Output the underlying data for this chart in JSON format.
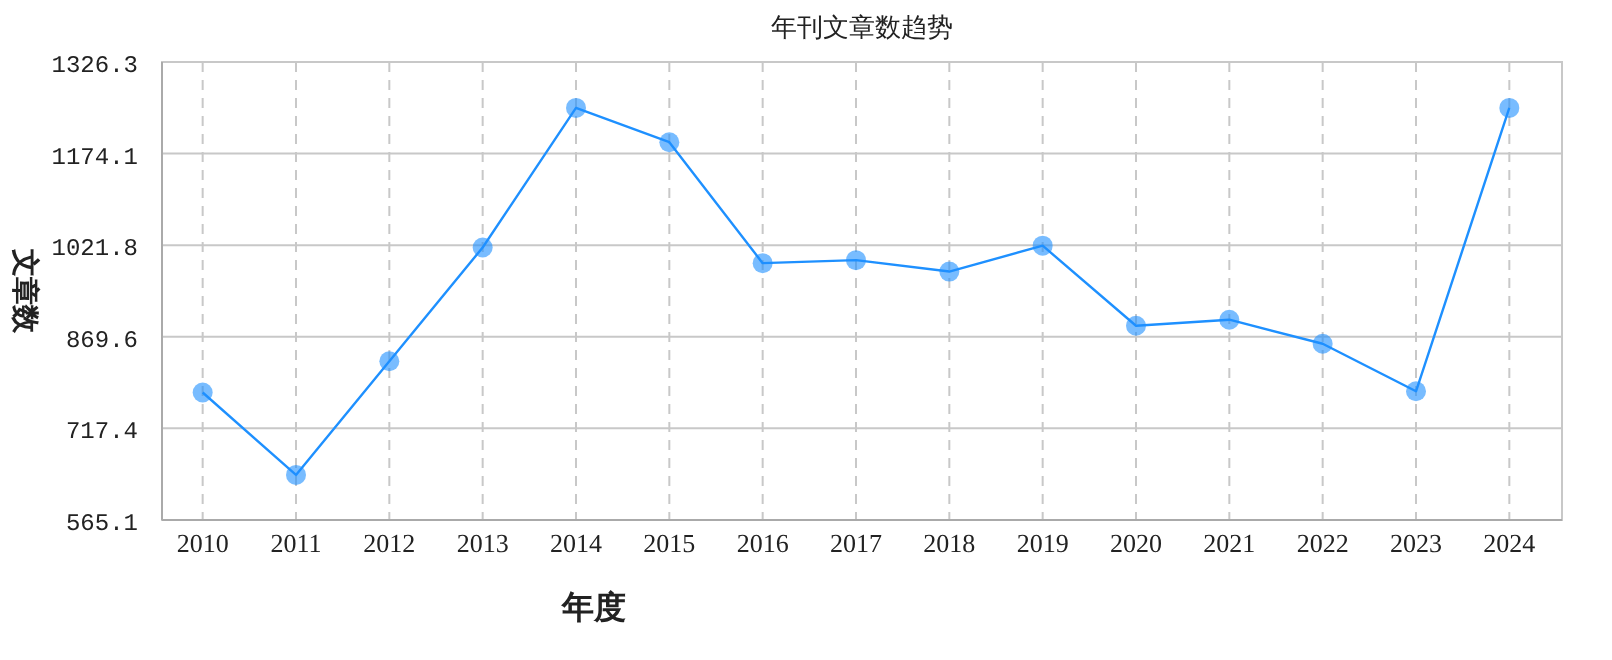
{
  "chart_data": {
    "type": "line",
    "title": "年刊文章数趋势",
    "xlabel": "年度",
    "ylabel": "文章数",
    "categories": [
      "2010",
      "2011",
      "2012",
      "2013",
      "2014",
      "2015",
      "2016",
      "2017",
      "2018",
      "2019",
      "2020",
      "2021",
      "2022",
      "2023",
      "2024"
    ],
    "series": [
      {
        "color": "#1e90ff",
        "values": [
          777,
          640,
          829,
          1018,
          1250,
          1193,
          992,
          997,
          978,
          1021,
          888,
          898,
          858,
          779,
          1250
        ]
      }
    ],
    "ylim": [
      565.1,
      1326.3
    ],
    "yticks": [
      565.1,
      717.4,
      869.6,
      1021.8,
      1174.1,
      1326.3
    ],
    "grid": true,
    "marker": "circle",
    "line_style": "solid"
  }
}
